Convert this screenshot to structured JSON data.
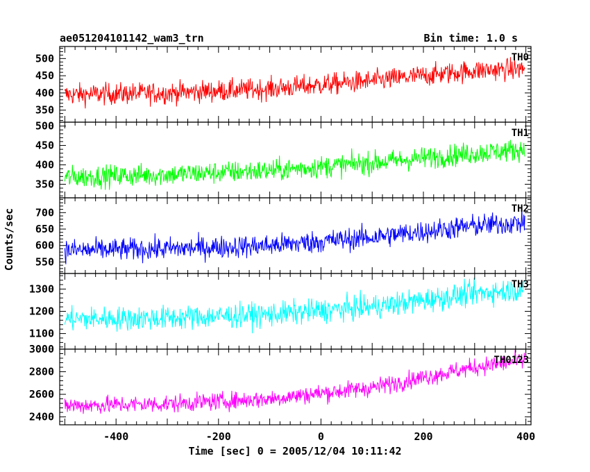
{
  "header": {
    "title": "ae051204101142_wam3_trn",
    "bin_time": "Bin time: 1.0 s"
  },
  "chart_data": {
    "type": "line",
    "xlabel": "Time [sec] 0 = 2005/12/04 10:11:42",
    "ylabel": "Counts/sec",
    "xlim": [
      -510,
      410
    ],
    "x_ticks": [
      -400,
      -200,
      0,
      200,
      400
    ],
    "x_start": -500,
    "x_end": 398,
    "bin": 1.0,
    "panels": [
      {
        "name": "TH0",
        "color": "#ff0000",
        "ylim": [
          315,
          535
        ],
        "y_ticks": [
          350,
          400,
          450,
          500
        ],
        "trend": [
          [
            -500,
            395
          ],
          [
            -300,
            400
          ],
          [
            -100,
            412
          ],
          [
            100,
            435
          ],
          [
            300,
            465
          ],
          [
            398,
            470
          ]
        ],
        "noise": 22
      },
      {
        "name": "TH1",
        "color": "#00ff00",
        "ylim": [
          315,
          510
        ],
        "y_ticks": [
          350,
          400,
          450,
          500
        ],
        "trend": [
          [
            -500,
            368
          ],
          [
            -300,
            375
          ],
          [
            -100,
            385
          ],
          [
            100,
            405
          ],
          [
            300,
            430
          ],
          [
            398,
            440
          ]
        ],
        "noise": 20
      },
      {
        "name": "TH2",
        "color": "#0000ff",
        "ylim": [
          515,
          745
        ],
        "y_ticks": [
          550,
          600,
          650,
          700
        ],
        "trend": [
          [
            -500,
            585
          ],
          [
            -300,
            590
          ],
          [
            -100,
            600
          ],
          [
            100,
            625
          ],
          [
            300,
            660
          ],
          [
            398,
            670
          ]
        ],
        "noise": 24
      },
      {
        "name": "TH3",
        "color": "#00ffff",
        "ylim": [
          1030,
          1370
        ],
        "y_ticks": [
          1100,
          1200,
          1300
        ],
        "trend": [
          [
            -500,
            1165
          ],
          [
            -300,
            1170
          ],
          [
            -100,
            1185
          ],
          [
            100,
            1220
          ],
          [
            300,
            1280
          ],
          [
            398,
            1300
          ]
        ],
        "noise": 38
      },
      {
        "name": "TH0123",
        "color": "#ff00ff",
        "ylim": [
          2330,
          3000
        ],
        "y_ticks": [
          2400,
          2600,
          2800,
          3000
        ],
        "trend": [
          [
            -500,
            2500
          ],
          [
            -300,
            2515
          ],
          [
            -100,
            2560
          ],
          [
            100,
            2660
          ],
          [
            300,
            2840
          ],
          [
            398,
            2900
          ]
        ],
        "noise": 55
      }
    ]
  }
}
